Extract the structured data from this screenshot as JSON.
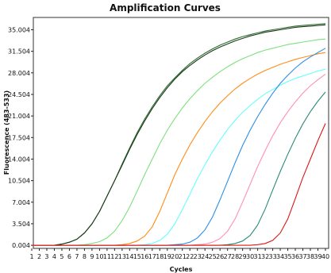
{
  "chart_data": {
    "type": "line",
    "title": "Amplification Curves",
    "xlabel": "Cycles",
    "ylabel": "Fluorescence (483-533)",
    "xlim": [
      1,
      40
    ],
    "ylim": [
      -0.5,
      37.0
    ],
    "x_ticks": [
      "1",
      "2",
      "3",
      "4",
      "5",
      "6",
      "7",
      "8",
      "9",
      "10",
      "11",
      "12",
      "13",
      "14",
      "15",
      "16",
      "17",
      "18",
      "19",
      "20",
      "21",
      "22",
      "23",
      "24",
      "25",
      "26",
      "27",
      "28",
      "29",
      "30",
      "31",
      "32",
      "33",
      "34",
      "35",
      "36",
      "37",
      "38",
      "39",
      "40"
    ],
    "y_ticks": [
      {
        "value": 0.004,
        "label": "0.004"
      },
      {
        "value": 3.504,
        "label": "3.504"
      },
      {
        "value": 7.004,
        "label": "7.004"
      },
      {
        "value": 10.504,
        "label": "10.504"
      },
      {
        "value": 14.004,
        "label": "14.004"
      },
      {
        "value": 17.504,
        "label": "17.504"
      },
      {
        "value": 21.004,
        "label": "21.004"
      },
      {
        "value": 24.504,
        "label": "24.504"
      },
      {
        "value": 28.004,
        "label": "28.004"
      },
      {
        "value": 31.504,
        "label": "31.504"
      },
      {
        "value": 35.004,
        "label": "35.004"
      }
    ],
    "grid": false,
    "legend": "none",
    "series": [
      {
        "color": "#2e6b2e",
        "values": [
          0.0,
          0.0,
          0.0,
          0.0,
          0.2,
          0.5,
          1.0,
          2.0,
          3.5,
          5.5,
          8.0,
          10.5,
          13.2,
          15.8,
          18.3,
          20.5,
          22.5,
          24.3,
          25.9,
          27.2,
          28.4,
          29.5,
          30.4,
          31.2,
          31.9,
          32.5,
          33.0,
          33.5,
          33.9,
          34.2,
          34.5,
          34.8,
          35.0,
          35.2,
          35.4,
          35.6,
          35.7,
          35.8,
          35.9,
          36.0
        ]
      },
      {
        "color": "#1a3a1a",
        "values": [
          0.0,
          0.0,
          0.0,
          0.0,
          0.2,
          0.5,
          1.0,
          2.0,
          3.5,
          5.5,
          8.0,
          10.5,
          13.0,
          15.6,
          18.0,
          20.2,
          22.2,
          24.0,
          25.6,
          27.0,
          28.2,
          29.2,
          30.1,
          30.9,
          31.6,
          32.2,
          32.7,
          33.2,
          33.6,
          34.0,
          34.3,
          34.6,
          34.8,
          35.0,
          35.2,
          35.4,
          35.5,
          35.6,
          35.7,
          35.8
        ]
      },
      {
        "color": "#7ee07e",
        "values": [
          0.0,
          0.0,
          0.0,
          0.0,
          0.0,
          0.0,
          0.0,
          0.1,
          0.3,
          0.6,
          1.2,
          2.3,
          4.0,
          6.2,
          8.8,
          11.5,
          14.0,
          16.5,
          18.7,
          20.6,
          22.3,
          23.8,
          25.1,
          26.3,
          27.3,
          28.2,
          29.0,
          29.7,
          30.3,
          30.8,
          31.3,
          31.7,
          32.0,
          32.3,
          32.6,
          32.8,
          33.0,
          33.2,
          33.4,
          33.5
        ]
      },
      {
        "color": "#ff8c1a",
        "values": [
          0.0,
          0.0,
          0.0,
          0.0,
          0.0,
          0.0,
          0.0,
          0.0,
          0.0,
          0.0,
          0.0,
          0.0,
          0.1,
          0.3,
          0.7,
          1.5,
          3.0,
          5.5,
          8.5,
          11.5,
          14.0,
          16.3,
          18.3,
          20.1,
          21.7,
          23.1,
          24.3,
          25.4,
          26.3,
          27.1,
          27.8,
          28.4,
          28.9,
          29.4,
          29.8,
          30.2,
          30.5,
          30.8,
          31.1,
          31.3
        ]
      },
      {
        "color": "#66ffff",
        "values": [
          0.0,
          0.0,
          0.0,
          0.0,
          0.0,
          0.0,
          0.0,
          0.0,
          0.0,
          0.0,
          0.0,
          0.0,
          0.0,
          0.0,
          0.0,
          0.1,
          0.3,
          0.8,
          1.8,
          3.5,
          5.8,
          8.3,
          10.8,
          13.1,
          15.2,
          17.1,
          18.8,
          20.3,
          21.6,
          22.7,
          23.7,
          24.6,
          25.3,
          26.0,
          26.6,
          27.1,
          27.5,
          27.9,
          28.3,
          28.6
        ]
      },
      {
        "color": "#2c8ee8",
        "values": [
          0.0,
          0.0,
          0.0,
          0.0,
          0.0,
          0.0,
          0.0,
          0.0,
          0.0,
          0.0,
          0.0,
          0.0,
          0.0,
          0.0,
          0.0,
          0.0,
          0.0,
          0.0,
          0.0,
          0.1,
          0.2,
          0.5,
          1.2,
          2.5,
          4.6,
          7.4,
          10.4,
          13.4,
          16.2,
          18.7,
          20.9,
          22.9,
          24.7,
          26.3,
          27.6,
          28.8,
          29.8,
          30.6,
          31.3,
          32.0
        ]
      },
      {
        "color": "#ff8fb0",
        "values": [
          0.0,
          0.0,
          0.0,
          0.0,
          0.0,
          0.0,
          0.0,
          0.0,
          0.0,
          0.0,
          0.0,
          0.0,
          0.0,
          0.0,
          0.0,
          0.0,
          0.0,
          0.0,
          0.0,
          0.0,
          0.0,
          0.0,
          0.1,
          0.2,
          0.5,
          1.1,
          2.3,
          4.3,
          7.0,
          9.9,
          12.8,
          15.4,
          17.8,
          19.9,
          21.7,
          23.3,
          24.7,
          25.9,
          26.9,
          27.8
        ]
      },
      {
        "color": "#2c8a7a",
        "values": [
          0.0,
          0.0,
          0.0,
          0.0,
          0.0,
          0.0,
          0.0,
          0.0,
          0.0,
          0.0,
          0.0,
          0.0,
          0.0,
          0.0,
          0.0,
          0.0,
          0.0,
          0.0,
          0.0,
          0.0,
          0.0,
          0.0,
          0.0,
          0.0,
          0.0,
          0.0,
          0.1,
          0.3,
          0.7,
          1.6,
          3.3,
          5.9,
          9.0,
          12.0,
          14.8,
          17.4,
          19.7,
          21.7,
          23.4,
          24.9
        ]
      },
      {
        "color": "#e01414",
        "values": [
          0.0,
          0.0,
          0.0,
          0.0,
          0.0,
          0.0,
          0.0,
          0.0,
          0.0,
          0.0,
          0.0,
          0.0,
          0.0,
          0.0,
          0.0,
          0.0,
          0.0,
          0.0,
          0.0,
          0.0,
          0.0,
          0.0,
          0.0,
          0.0,
          0.0,
          0.0,
          0.0,
          0.0,
          0.0,
          0.0,
          0.1,
          0.3,
          0.8,
          2.0,
          4.3,
          7.6,
          11.0,
          14.0,
          17.0,
          19.8
        ]
      }
    ]
  }
}
